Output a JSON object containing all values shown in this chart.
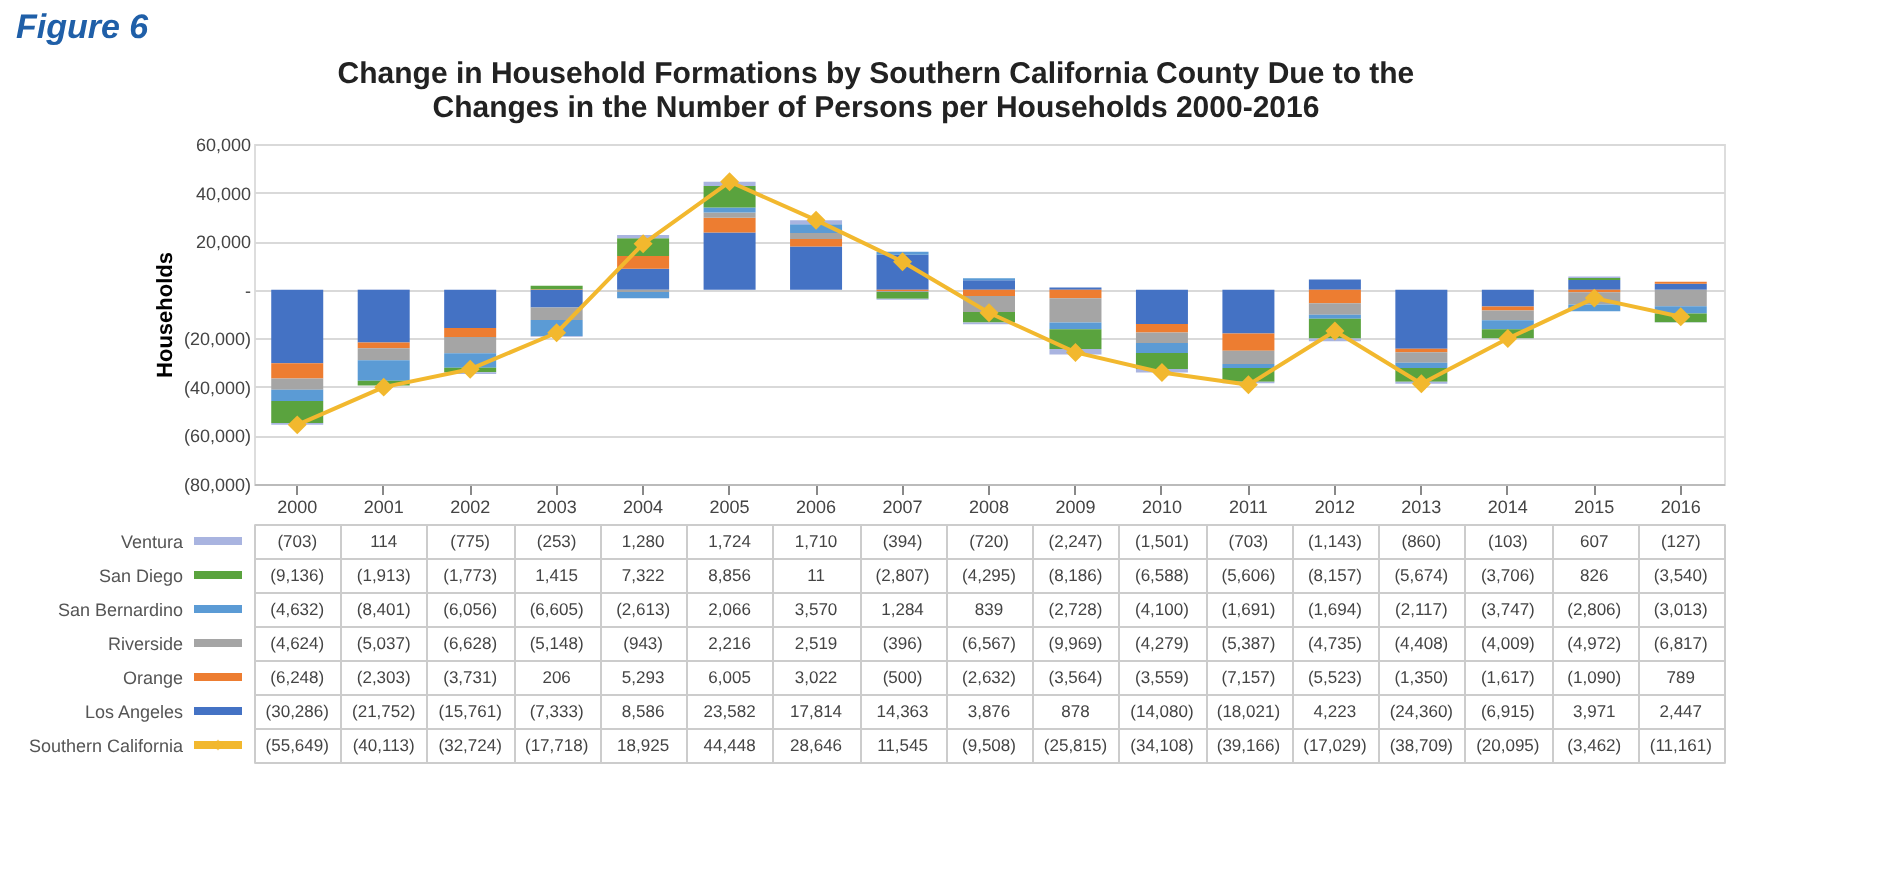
{
  "chart_data": {
    "type": "bar",
    "stacked": true,
    "title": [
      "Change in Household Formations by Southern California County Due to the",
      "Changes in the Number of Persons per Households  2000-2016"
    ],
    "annotations": [
      "Figure 6"
    ],
    "ylabel": "Households",
    "categories": [
      "2000",
      "2001",
      "2002",
      "2003",
      "2004",
      "2005",
      "2006",
      "2007",
      "2008",
      "2009",
      "2010",
      "2011",
      "2012",
      "2013",
      "2014",
      "2015",
      "2016"
    ],
    "ylim": [
      -80000,
      60000
    ],
    "yticks": [
      {
        "value": -80000,
        "label": "(80,000)"
      },
      {
        "value": -60000,
        "label": "(60,000)"
      },
      {
        "value": -40000,
        "label": "(40,000)"
      },
      {
        "value": -20000,
        "label": "(20,000)"
      },
      {
        "value": 0,
        "label": "-"
      },
      {
        "value": 20000,
        "label": "20,000"
      },
      {
        "value": 40000,
        "label": "40,000"
      },
      {
        "value": 60000,
        "label": "60,000"
      }
    ],
    "grid": "y",
    "legend": "bottom",
    "series": [
      {
        "name": "Los Angeles",
        "color": "#4472c4",
        "values": [
          -30286,
          -21752,
          -15761,
          -7333,
          8586,
          23582,
          17814,
          14363,
          3876,
          878,
          -14080,
          -18021,
          4223,
          -24360,
          -6915,
          3971,
          2447
        ],
        "value_labels": [
          "(30,286)",
          "(21,752)",
          "(15,761)",
          "(7,333)",
          "8,586",
          "23,582",
          "17,814",
          "14,363",
          "3,876",
          "878",
          "(14,080)",
          "(18,021)",
          "4,223",
          "(24,360)",
          "(6,915)",
          "3,971",
          "2,447"
        ]
      },
      {
        "name": "Orange",
        "color": "#ed7d31",
        "values": [
          -6248,
          -2303,
          -3731,
          206,
          5293,
          6005,
          3022,
          -500,
          -2632,
          -3564,
          -3559,
          -7157,
          -5523,
          -1350,
          -1617,
          -1090,
          789
        ],
        "value_labels": [
          "(6,248)",
          "(2,303)",
          "(3,731)",
          "206",
          "5,293",
          "6,005",
          "3,022",
          "(500)",
          "(2,632)",
          "(3,564)",
          "(3,559)",
          "(7,157)",
          "(5,523)",
          "(1,350)",
          "(1,617)",
          "(1,090)",
          "789"
        ]
      },
      {
        "name": "Riverside",
        "color": "#a5a5a5",
        "values": [
          -4624,
          -5037,
          -6628,
          -5148,
          -943,
          2216,
          2519,
          -396,
          -6567,
          -9969,
          -4279,
          -5387,
          -4735,
          -4408,
          -4009,
          -4972,
          -6817
        ],
        "value_labels": [
          "(4,624)",
          "(5,037)",
          "(6,628)",
          "(5,148)",
          "(943)",
          "2,216",
          "2,519",
          "(396)",
          "(6,567)",
          "(9,969)",
          "(4,279)",
          "(5,387)",
          "(4,735)",
          "(4,408)",
          "(4,009)",
          "(4,972)",
          "(6,817)"
        ]
      },
      {
        "name": "San Bernardino",
        "color": "#5b9bd5",
        "values": [
          -4632,
          -8401,
          -6056,
          -6605,
          -2613,
          2066,
          3570,
          1284,
          839,
          -2728,
          -4100,
          -1691,
          -1694,
          -2117,
          -3747,
          -2806,
          -3013
        ],
        "value_labels": [
          "(4,632)",
          "(8,401)",
          "(6,056)",
          "(6,605)",
          "(2,613)",
          "2,066",
          "3,570",
          "1,284",
          "839",
          "(2,728)",
          "(4,100)",
          "(1,691)",
          "(1,694)",
          "(2,117)",
          "(3,747)",
          "(2,806)",
          "(3,013)"
        ]
      },
      {
        "name": "San Diego",
        "color": "#5aa33e",
        "values": [
          -9136,
          -1913,
          -1773,
          1415,
          7322,
          8856,
          11,
          -2807,
          -4295,
          -8186,
          -6588,
          -5606,
          -8157,
          -5674,
          -3706,
          826,
          -3540
        ],
        "value_labels": [
          "(9,136)",
          "(1,913)",
          "(1,773)",
          "1,415",
          "7,322",
          "8,856",
          "11",
          "(2,807)",
          "(4,295)",
          "(8,186)",
          "(6,588)",
          "(5,606)",
          "(8,157)",
          "(5,674)",
          "(3,706)",
          "826",
          "(3,540)"
        ]
      },
      {
        "name": "Ventura",
        "color": "#a9b4e0",
        "values": [
          -703,
          114,
          -775,
          -253,
          1280,
          1724,
          1710,
          -394,
          -720,
          -2247,
          -1501,
          -703,
          -1143,
          -860,
          -103,
          607,
          -127
        ],
        "value_labels": [
          "(703)",
          "114",
          "(775)",
          "(253)",
          "1,280",
          "1,724",
          "1,710",
          "(394)",
          "(720)",
          "(2,247)",
          "(1,501)",
          "(703)",
          "(1,143)",
          "(860)",
          "(103)",
          "607",
          "(127)"
        ]
      },
      {
        "name": "Southern California",
        "type": "line",
        "marker": "diamond",
        "color": "#f2b82e",
        "values": [
          -55649,
          -40113,
          -32724,
          -17718,
          18925,
          44448,
          28646,
          11545,
          -9508,
          -25815,
          -34108,
          -39166,
          -17029,
          -38709,
          -20095,
          -3462,
          -11161
        ],
        "value_labels": [
          "(55,649)",
          "(40,113)",
          "(32,724)",
          "(17,718)",
          "18,925",
          "44,448",
          "28,646",
          "11,545",
          "(9,508)",
          "(25,815)",
          "(34,108)",
          "(39,166)",
          "(17,029)",
          "(38,709)",
          "(20,095)",
          "(3,462)",
          "(11,161)"
        ]
      }
    ]
  }
}
